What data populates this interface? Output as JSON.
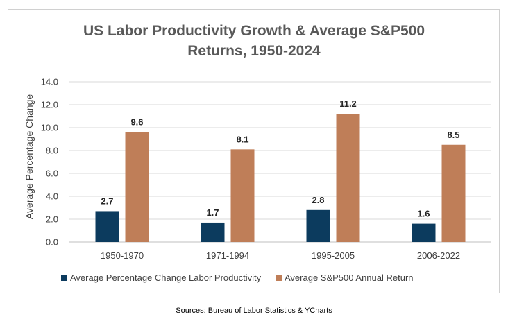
{
  "chart_data": {
    "type": "bar",
    "title_lines": [
      "US Labor Productivity Growth & Average S&P500",
      "Returns, 1950-2024"
    ],
    "ylabel": "Average Percentage Change",
    "xlabel": "",
    "ylim": [
      0,
      14
    ],
    "yticks": [
      "0.0",
      "2.0",
      "4.0",
      "6.0",
      "8.0",
      "10.0",
      "12.0",
      "14.0"
    ],
    "categories": [
      "1950-1970",
      "1971-1994",
      "1995-2005",
      "2006-2022"
    ],
    "series": [
      {
        "name": "Average Percentage Change Labor Productivity",
        "values": [
          2.7,
          1.7,
          2.8,
          1.6
        ],
        "labels": [
          "2.7",
          "1.7",
          "2.8",
          "1.6"
        ],
        "color": "#0c3b5e"
      },
      {
        "name": "Average S&P500 Annual Return",
        "values": [
          9.6,
          8.1,
          11.2,
          8.5
        ],
        "labels": [
          "9.6",
          "8.1",
          "11.2",
          "8.5"
        ],
        "color": "#bf7e58"
      }
    ],
    "grid": true,
    "legend_position": "bottom"
  },
  "source": "Sources: Bureau of Labor Statistics & YCharts"
}
